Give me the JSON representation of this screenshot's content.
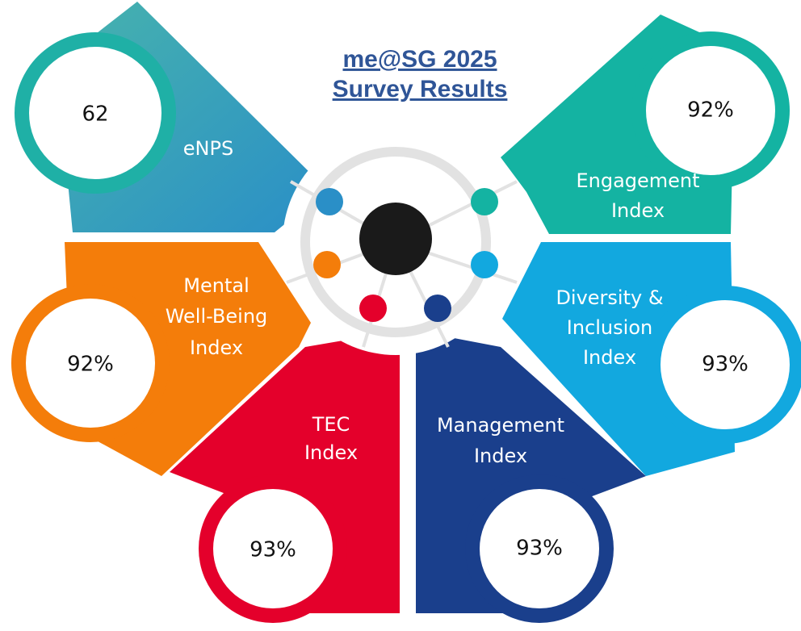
{
  "title": [
    "me@SG 2025",
    "Survey Results"
  ],
  "segments": [
    {
      "label": [
        "eNPS"
      ],
      "value": "62"
    },
    {
      "label": [
        "Engagement",
        "Index"
      ],
      "value": "92%"
    },
    {
      "label": [
        "Mental",
        "Well-Being",
        "Index"
      ],
      "value": "92%"
    },
    {
      "label": [
        "Diversity &",
        "Inclusion",
        "Index"
      ],
      "value": "93%"
    },
    {
      "label": [
        "TEC",
        "Index"
      ],
      "value": "93%"
    },
    {
      "label": [
        "Management",
        "Index"
      ],
      "value": "93%"
    }
  ]
}
